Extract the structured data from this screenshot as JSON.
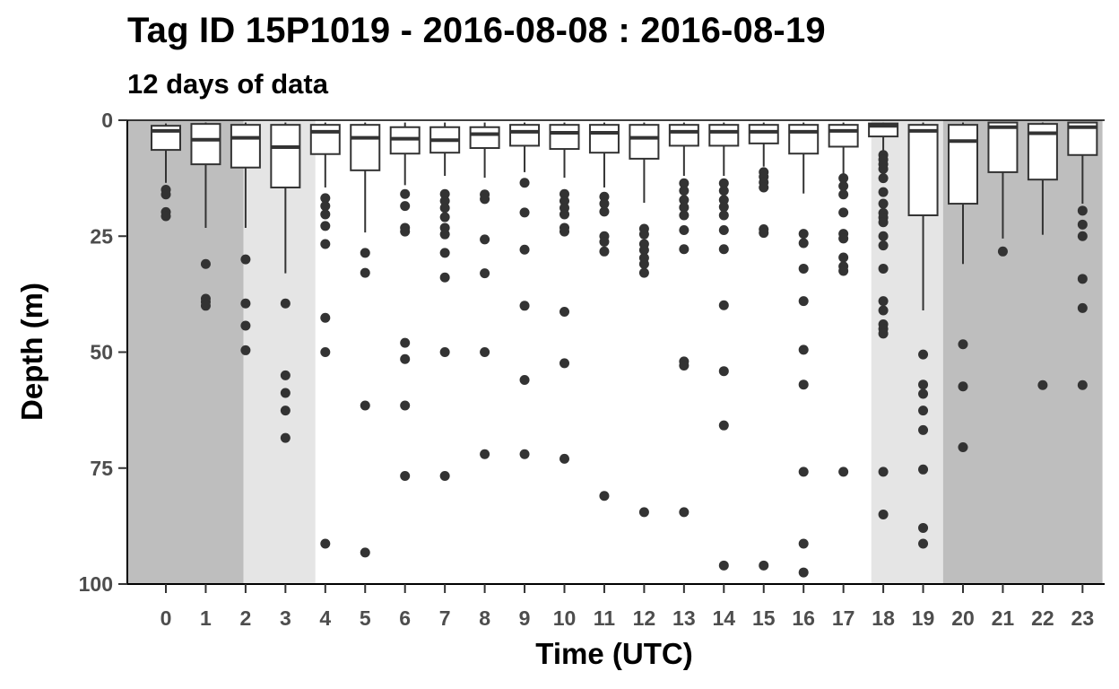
{
  "title": "Tag ID 15P1019 - 2016-08-08 : 2016-08-19",
  "subtitle": "12 days of data",
  "chart_data": {
    "type": "boxplot",
    "xlabel": "Time (UTC)",
    "ylabel": "Depth (m)",
    "ylim": [
      0,
      100
    ],
    "y_reversed": true,
    "yticks": [
      "0",
      "25",
      "50",
      "75",
      "100"
    ],
    "categories": [
      "0",
      "1",
      "2",
      "3",
      "4",
      "5",
      "6",
      "7",
      "8",
      "9",
      "10",
      "11",
      "12",
      "13",
      "14",
      "15",
      "16",
      "17",
      "18",
      "19",
      "20",
      "21",
      "22",
      "23"
    ],
    "boxes": [
      {
        "hour": 0,
        "lower": 0.7,
        "q1": 1.2,
        "median": 2.3,
        "q3": 6.4,
        "upper": 13.5,
        "outliers": [
          15,
          16,
          19.8,
          20.7
        ]
      },
      {
        "hour": 1,
        "lower": 0.5,
        "q1": 0.8,
        "median": 4.2,
        "q3": 9.5,
        "upper": 23.2,
        "outliers": [
          31,
          38.5,
          39.2,
          40
        ]
      },
      {
        "hour": 2,
        "lower": 0.5,
        "q1": 1.0,
        "median": 3.8,
        "q3": 10.2,
        "upper": 23.2,
        "outliers": [
          30,
          39.5,
          44.3,
          49.6
        ]
      },
      {
        "hour": 3,
        "lower": 0.5,
        "q1": 1.0,
        "median": 5.8,
        "q3": 14.5,
        "upper": 33.0,
        "outliers": [
          39.5,
          55,
          58.8,
          62.6,
          68.5
        ]
      },
      {
        "hour": 4,
        "lower": 0.5,
        "q1": 1.0,
        "median": 2.5,
        "q3": 7.3,
        "upper": 14.5,
        "outliers": [
          16.8,
          18.5,
          20.3,
          22.8,
          26.7,
          42.6,
          50,
          91.3
        ]
      },
      {
        "hour": 5,
        "lower": 0.5,
        "q1": 1.0,
        "median": 3.8,
        "q3": 10.8,
        "upper": 24.2,
        "outliers": [
          28.6,
          32.9,
          61.5,
          93.2
        ]
      },
      {
        "hour": 6,
        "lower": 0.5,
        "q1": 1.5,
        "median": 4.0,
        "q3": 7.2,
        "upper": 14.0,
        "outliers": [
          15.9,
          18.5,
          23.2,
          24,
          48,
          51.5,
          61.5,
          76.7
        ]
      },
      {
        "hour": 7,
        "lower": 0.5,
        "q1": 1.5,
        "median": 4.3,
        "q3": 7.0,
        "upper": 12.0,
        "outliers": [
          15.9,
          17.4,
          18.9,
          20.9,
          23.2,
          24.6,
          28.6,
          33.9,
          50,
          76.7
        ]
      },
      {
        "hour": 8,
        "lower": 0.5,
        "q1": 1.5,
        "median": 3.0,
        "q3": 6.0,
        "upper": 12.4,
        "outliers": [
          16,
          17,
          25.7,
          33,
          50,
          72
        ]
      },
      {
        "hour": 9,
        "lower": 0.5,
        "q1": 1.0,
        "median": 2.5,
        "q3": 5.5,
        "upper": 11.2,
        "outliers": [
          13.5,
          19.9,
          27.9,
          40,
          56,
          72
        ]
      },
      {
        "hour": 10,
        "lower": 0.5,
        "q1": 1.0,
        "median": 2.7,
        "q3": 6.2,
        "upper": 12.4,
        "outliers": [
          15.9,
          17.4,
          18.9,
          20.3,
          23.2,
          24,
          41.3,
          52.4,
          73
        ]
      },
      {
        "hour": 11,
        "lower": 0.5,
        "q1": 1.0,
        "median": 2.7,
        "q3": 7.0,
        "upper": 14.5,
        "outliers": [
          16.5,
          18,
          19.7,
          25,
          26.2,
          28.3,
          81
        ]
      },
      {
        "hour": 12,
        "lower": 0.5,
        "q1": 1.0,
        "median": 3.8,
        "q3": 8.3,
        "upper": 17.8,
        "outliers": [
          23.4,
          24.6,
          26.7,
          28,
          29.7,
          31,
          32.9,
          84.5
        ]
      },
      {
        "hour": 13,
        "lower": 0.5,
        "q1": 1.0,
        "median": 2.5,
        "q3": 5.5,
        "upper": 12.0,
        "outliers": [
          13.6,
          15.2,
          17.2,
          18.8,
          20.5,
          23.7,
          27.8,
          52,
          52.9,
          84.5
        ]
      },
      {
        "hour": 14,
        "lower": 0.5,
        "q1": 1.0,
        "median": 2.5,
        "q3": 5.5,
        "upper": 12.0,
        "outliers": [
          13.6,
          15.2,
          17.2,
          18.7,
          20.5,
          23.7,
          27.8,
          39.9,
          54.1,
          65.8,
          96
        ]
      },
      {
        "hour": 15,
        "lower": 0.5,
        "q1": 1.0,
        "median": 2.5,
        "q3": 5.0,
        "upper": 10.0,
        "outliers": [
          11.2,
          12.2,
          13.4,
          14.5,
          23.5,
          24.3,
          96
        ]
      },
      {
        "hour": 16,
        "lower": 0.5,
        "q1": 1.0,
        "median": 2.5,
        "q3": 7.2,
        "upper": 15.8,
        "outliers": [
          24.5,
          26.5,
          32,
          39,
          49.5,
          57,
          75.8,
          91.3,
          97.5
        ]
      },
      {
        "hour": 17,
        "lower": 0.5,
        "q1": 1.0,
        "median": 2.3,
        "q3": 5.7,
        "upper": 11.9,
        "outliers": [
          12.5,
          14.2,
          16,
          19.9,
          24.5,
          25.5,
          29.6,
          31.5,
          32.5,
          75.8
        ]
      },
      {
        "hour": 18,
        "lower": 0.5,
        "q1": 0.7,
        "median": 1.2,
        "q3": 3.5,
        "upper": 6.5,
        "outliers": [
          7.5,
          8.5,
          9.5,
          10.5,
          12.5,
          15.5,
          18,
          20,
          21,
          22,
          25,
          27,
          32,
          39,
          41,
          44,
          45,
          46,
          75.8,
          85
        ]
      },
      {
        "hour": 19,
        "lower": 0.5,
        "q1": 1.0,
        "median": 2.3,
        "q3": 20.5,
        "upper": 41.0,
        "outliers": [
          50.5,
          57,
          59,
          62.6,
          66.8,
          75.3,
          87.9,
          91.3
        ]
      },
      {
        "hour": 20,
        "lower": 0.5,
        "q1": 1.0,
        "median": 4.5,
        "q3": 18.0,
        "upper": 31.0,
        "outliers": [
          48.3,
          57.4,
          70.5
        ]
      },
      {
        "hour": 21,
        "lower": 0.5,
        "q1": 0.5,
        "median": 1.5,
        "q3": 11.2,
        "upper": 25.5,
        "outliers": [
          28.3
        ]
      },
      {
        "hour": 22,
        "lower": 0.5,
        "q1": 0.8,
        "median": 2.8,
        "q3": 12.8,
        "upper": 24.7,
        "outliers": [
          57.1
        ]
      },
      {
        "hour": 23,
        "lower": 0.5,
        "q1": 0.5,
        "median": 1.5,
        "q3": 7.5,
        "upper": 18.0,
        "outliers": [
          19.5,
          22.5,
          25,
          34.2,
          40.5,
          57.1
        ]
      }
    ],
    "background_shading": [
      {
        "from_hour": -0.95,
        "to_hour": 1.95,
        "color": "#bebebe"
      },
      {
        "from_hour": 1.95,
        "to_hour": 3.75,
        "color": "#e5e5e5"
      },
      {
        "from_hour": 17.7,
        "to_hour": 19.5,
        "color": "#e5e5e5"
      },
      {
        "from_hour": 19.5,
        "to_hour": 23.5,
        "color": "#bebebe"
      }
    ],
    "colors": {
      "box_fill": "#ffffff",
      "box_stroke": "#333333",
      "outlier": "#333333",
      "night": "#bebebe",
      "twilight": "#e5e5e5"
    }
  }
}
